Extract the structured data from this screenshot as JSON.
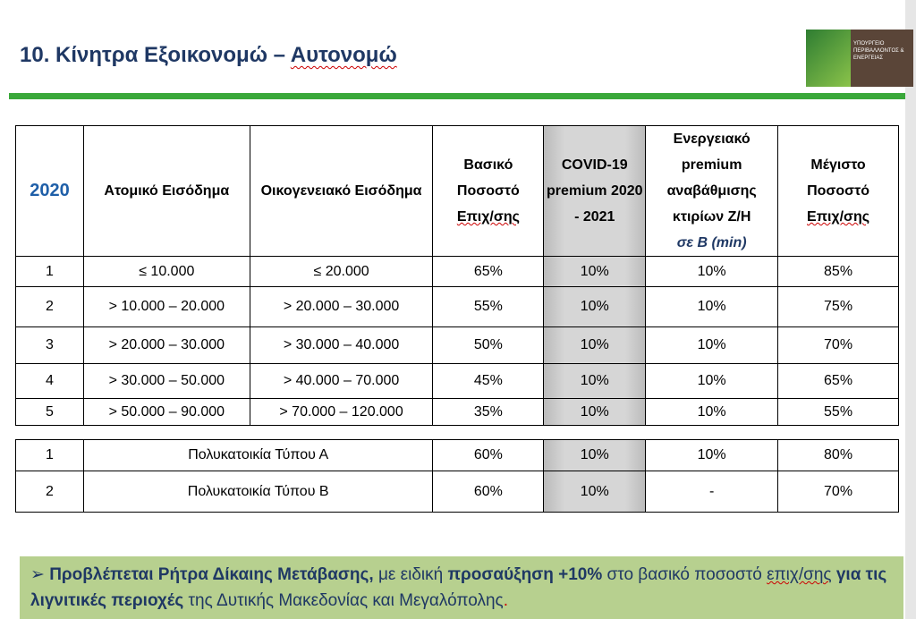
{
  "title": {
    "main": "10. Κίνητρα Εξοικονομώ – ",
    "underlined": "Αυτονομώ"
  },
  "logo": {
    "text": "ΥΠΟΥΡΓΕΙΟ ΠΕΡΙΒΑΛΛΟΝΤΟΣ & ΕΝΕΡΓΕΙΑΣ"
  },
  "table": {
    "year": "2020",
    "headers": [
      "Ατομικό Εισόδημα",
      "Οικογενειακό Εισόδημα",
      "Βασικό Ποσοστό",
      "Επιχ/σης",
      "COVID-19 premium 2020 - 2021",
      "Ενεργειακό premium αναβάθμισης κτιρίων Ζ/Η",
      "σε Β (min)",
      "Μέγιστο Ποσοστό",
      "Επιχ/σης"
    ],
    "rows": [
      [
        "1",
        "≤ 10.000",
        "≤ 20.000",
        "65%",
        "10%",
        "10%",
        "85%"
      ],
      [
        "2",
        "> 10.000 – 20.000",
        "> 20.000 – 30.000",
        "55%",
        "10%",
        "10%",
        "75%"
      ],
      [
        "3",
        "> 20.000 – 30.000",
        "> 30.000 – 40.000",
        "50%",
        "10%",
        "10%",
        "70%"
      ],
      [
        "4",
        "> 30.000 – 50.000",
        "> 40.000 – 70.000",
        "45%",
        "10%",
        "10%",
        "65%"
      ],
      [
        "5",
        "> 50.000 – 90.000",
        "> 70.000 – 120.000",
        "35%",
        "10%",
        "10%",
        "55%"
      ]
    ],
    "rows2": [
      [
        "1",
        "Πολυκατοικία Τύπου Α",
        "60%",
        "10%",
        "10%",
        "80%"
      ],
      [
        "2",
        "Πολυκατοικία  Τύπου Β",
        "60%",
        "10%",
        "-",
        "70%"
      ]
    ]
  },
  "note": {
    "b1": "Προβλέπεται Ρήτρα Δίκαιης Μετάβασης,",
    "t1": " με ειδική ",
    "b2": "προσαύξηση +10%",
    "t2": " στο βασικό ποσοστό ",
    "sq": "επιχ/σης",
    "b3": "  για τις λιγνιτικές περιοχές",
    "t3": " της Δυτικής Μακεδονίας και Μεγαλόπολης",
    "dot": "."
  }
}
